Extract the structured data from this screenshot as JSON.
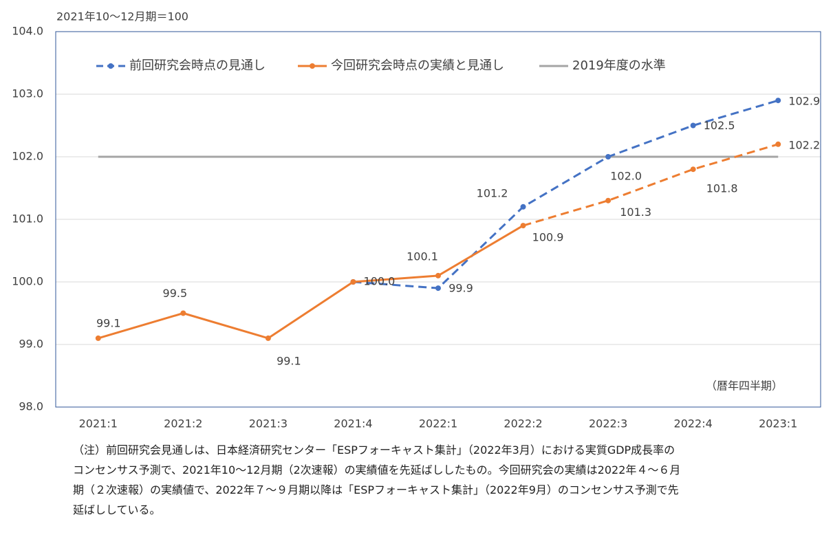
{
  "chart_data": {
    "type": "line",
    "y_label": "2021年10～12月期＝100",
    "annotation": "（暦年四半期）",
    "categories": [
      "2021:1",
      "2021:2",
      "2021:3",
      "2021:4",
      "2022:1",
      "2022:2",
      "2022:3",
      "2022:4",
      "2023:1"
    ],
    "series": [
      {
        "name": "前回研究会時点の見通し",
        "color": "#4472c4",
        "dashed": true,
        "values": [
          null,
          null,
          null,
          100.0,
          99.9,
          101.2,
          102.0,
          102.5,
          102.9
        ],
        "value_labels": [
          null,
          null,
          null,
          "100.0",
          "99.9",
          "101.2",
          "102.0",
          "102.5",
          "102.9"
        ]
      },
      {
        "name": "今回研究会時点の実績と見通し",
        "color": "#ed7d31",
        "dashed_from": "2022:2",
        "values": [
          99.1,
          99.5,
          99.1,
          100.0,
          100.1,
          100.9,
          101.3,
          101.8,
          102.2
        ],
        "value_labels": [
          "99.1",
          "99.5",
          "99.1",
          null,
          "100.1",
          "100.9",
          "101.3",
          "101.8",
          "102.2"
        ]
      },
      {
        "name": "2019年度の水準",
        "color": "#a5a5a5",
        "values": [
          102.0,
          102.0,
          102.0,
          102.0,
          102.0,
          102.0,
          102.0,
          102.0,
          102.0
        ]
      }
    ],
    "ylim": [
      98,
      104
    ],
    "yticks": [
      {
        "value": 98,
        "label": "98.0"
      },
      {
        "value": 99,
        "label": "99.0"
      },
      {
        "value": 100,
        "label": "100.0"
      },
      {
        "value": 101,
        "label": "101.0"
      },
      {
        "value": 102,
        "label": "102.0"
      },
      {
        "value": 103,
        "label": "103.0"
      },
      {
        "value": 104,
        "label": "104.0"
      }
    ],
    "grid": true,
    "legend": "top"
  },
  "note": [
    "（注）前回研究会見通しは、日本経済研究センター「ESPフォーキャスト集計」（2022年3月）における実質GDP成長率の",
    "コンセンサス予測で、2021年10～12月期（2次速報）の実績値を先延ばししたもの。今回研究会の実績は2022年４～６月",
    "期（２次速報）の実績値で、2022年７～９月期以降は「ESPフォーキャスト集計」（2022年9月）のコンセンサス予測で先",
    "延ばししている。"
  ]
}
